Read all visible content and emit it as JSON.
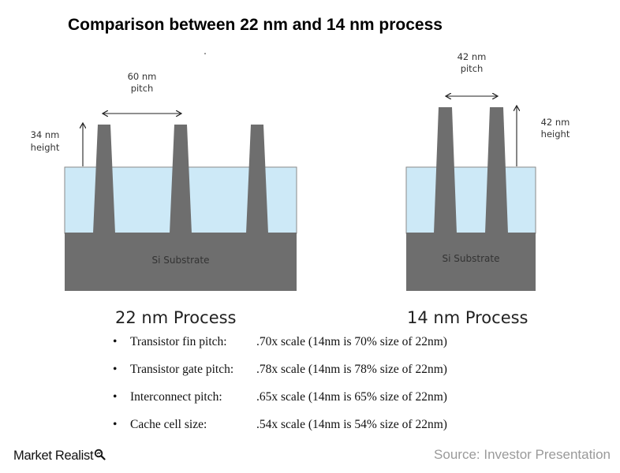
{
  "title": "Comparison between 22 nm and 14 nm process",
  "colors": {
    "oxide": "#cde9f7",
    "silicon": "#6e6e6e",
    "arrow": "#222222",
    "source_text": "#9a9a9a"
  },
  "left_diagram": {
    "substrate_label": "Si Substrate",
    "pitch_label": [
      "60 nm",
      "pitch"
    ],
    "height_label": [
      "34 nm",
      "height"
    ],
    "caption": "22 nm Process"
  },
  "right_diagram": {
    "substrate_label": "Si Substrate",
    "pitch_label": [
      "42 nm",
      "pitch"
    ],
    "height_label": [
      "42 nm",
      "height"
    ],
    "caption": "14 nm Process"
  },
  "bullets": [
    {
      "name": "Transistor fin pitch:",
      "value": ".70x scale (14nm is 70% size of 22nm)"
    },
    {
      "name": "Transistor gate pitch:",
      "value": ".78x scale (14nm is 78% size of 22nm)"
    },
    {
      "name": "Interconnect pitch:",
      "value": ".65x scale (14nm is 65% size of 22nm)"
    },
    {
      "name": "Cache cell size:",
      "value": ".54x scale (14nm is 54% size of 22nm)"
    }
  ],
  "footer": {
    "brand": "Market Realist",
    "brand_icon": "magnifier-icon",
    "source": "Source: Investor Presentation"
  }
}
